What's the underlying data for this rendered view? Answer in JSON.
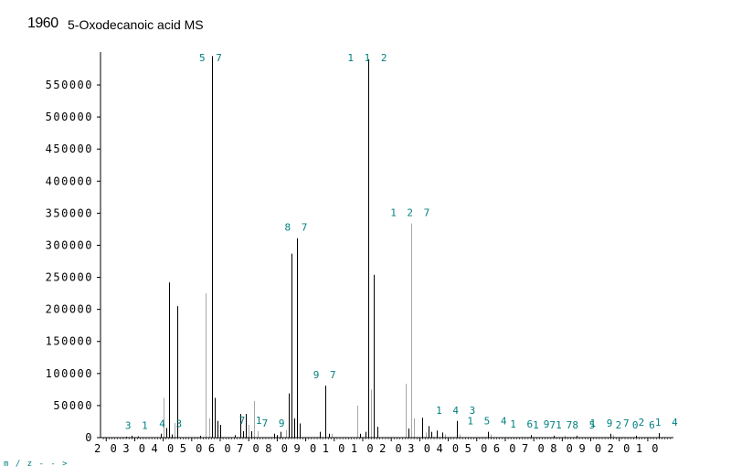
{
  "header": {
    "number": "1960",
    "compound": "5-Oxodecanoic acid MS"
  },
  "chart_data": {
    "type": "bar",
    "title": "5-Oxodecanoic acid MS",
    "xlabel": "m / z - - >",
    "ylabel": "",
    "xlim": [
      18,
      219
    ],
    "ylim": [
      0,
      600000
    ],
    "y_ticks": [
      0,
      50000,
      100000,
      150000,
      200000,
      250000,
      300000,
      350000,
      400000,
      450000,
      500000,
      550000
    ],
    "y_tick_labels": [
      "0",
      "50000",
      "100000",
      "150000",
      "200000",
      "250000",
      "300000",
      "350000",
      "400000",
      "450000",
      "500000",
      "550000"
    ],
    "x_ticks": [
      20,
      30,
      40,
      50,
      60,
      70,
      80,
      90,
      100,
      110,
      120,
      130,
      140,
      150,
      160,
      170,
      180,
      190,
      200,
      210
    ],
    "x_tick_labels": [
      "2 0",
      "3 0",
      "4 0",
      "5 0",
      "6 0",
      "7 0",
      "8 0",
      "9 0",
      "1 0",
      "1 0",
      "2 0",
      "3 0",
      "4 0",
      "5 0",
      "6 0",
      "7 0",
      "8 0",
      "9 0",
      "2 0",
      "1 0"
    ],
    "peak_labels": [
      {
        "mz": 31,
        "text": "3 1"
      },
      {
        "mz": 43,
        "text": "4 3"
      },
      {
        "mz": 57,
        "text": "5 7"
      },
      {
        "mz": 71,
        "text": "7 1"
      },
      {
        "mz": 79,
        "text": "7 9"
      },
      {
        "mz": 87,
        "text": "8 7"
      },
      {
        "mz": 97,
        "text": "9 7"
      },
      {
        "mz": 112,
        "text": "1 1 2"
      },
      {
        "mz": 127,
        "text": "1 2 7"
      },
      {
        "mz": 143,
        "text": "1 4 3"
      },
      {
        "mz": 154,
        "text": "1 5 4"
      },
      {
        "mz": 169,
        "text": "1 6 9"
      },
      {
        "mz": 177,
        "text": "1 7 7"
      },
      {
        "mz": 185,
        "text": "1 8 5"
      },
      {
        "mz": 197,
        "text": "1 9 7"
      },
      {
        "mz": 206,
        "text": "2 0 6"
      },
      {
        "mz": 214,
        "text": "2 1 4"
      }
    ],
    "series": [
      {
        "values": [
          {
            "mz": 27,
            "intensity": 1500
          },
          {
            "mz": 29,
            "intensity": 3000
          },
          {
            "mz": 31,
            "intensity": 2000
          },
          {
            "mz": 39,
            "intensity": 6000
          },
          {
            "mz": 41,
            "intensity": 15000
          },
          {
            "mz": 42,
            "intensity": 242000
          },
          {
            "mz": 43,
            "intensity": 5000
          },
          {
            "mz": 45,
            "intensity": 205000
          },
          {
            "mz": 53,
            "intensity": 3000
          },
          {
            "mz": 55,
            "intensity": 15000
          },
          {
            "mz": 57,
            "intensity": 595000
          },
          {
            "mz": 58,
            "intensity": 62000
          },
          {
            "mz": 59,
            "intensity": 26000
          },
          {
            "mz": 60,
            "intensity": 20000
          },
          {
            "mz": 65,
            "intensity": 4000
          },
          {
            "mz": 67,
            "intensity": 37000
          },
          {
            "mz": 68,
            "intensity": 10000
          },
          {
            "mz": 69,
            "intensity": 37000
          },
          {
            "mz": 71,
            "intensity": 10000
          },
          {
            "mz": 79,
            "intensity": 6000
          },
          {
            "mz": 80,
            "intensity": 4000
          },
          {
            "mz": 81,
            "intensity": 9000
          },
          {
            "mz": 84,
            "intensity": 69000
          },
          {
            "mz": 85,
            "intensity": 287000
          },
          {
            "mz": 86,
            "intensity": 30000
          },
          {
            "mz": 87,
            "intensity": 311000
          },
          {
            "mz": 88,
            "intensity": 22000
          },
          {
            "mz": 95,
            "intensity": 9000
          },
          {
            "mz": 97,
            "intensity": 81000
          },
          {
            "mz": 98,
            "intensity": 6000
          },
          {
            "mz": 109,
            "intensity": 6000
          },
          {
            "mz": 111,
            "intensity": 9000
          },
          {
            "mz": 112,
            "intensity": 590000
          },
          {
            "mz": 114,
            "intensity": 254000
          },
          {
            "mz": 115,
            "intensity": 17000
          },
          {
            "mz": 126,
            "intensity": 14000
          },
          {
            "mz": 131,
            "intensity": 31000
          },
          {
            "mz": 133,
            "intensity": 18000
          },
          {
            "mz": 134,
            "intensity": 9000
          },
          {
            "mz": 136,
            "intensity": 11000
          },
          {
            "mz": 138,
            "intensity": 8000
          },
          {
            "mz": 143,
            "intensity": 26000
          },
          {
            "mz": 154,
            "intensity": 9000
          },
          {
            "mz": 169,
            "intensity": 4000
          },
          {
            "mz": 177,
            "intensity": 3000
          },
          {
            "mz": 185,
            "intensity": 3000
          },
          {
            "mz": 197,
            "intensity": 6000
          },
          {
            "mz": 206,
            "intensity": 3000
          },
          {
            "mz": 214,
            "intensity": 7000
          }
        ]
      },
      {
        "values": [
          {
            "mz": 40,
            "intensity": 62000
          },
          {
            "mz": 44,
            "intensity": 23000
          },
          {
            "mz": 55,
            "intensity": 225000
          },
          {
            "mz": 56,
            "intensity": 30000
          },
          {
            "mz": 70,
            "intensity": 20000
          },
          {
            "mz": 72,
            "intensity": 57000
          },
          {
            "mz": 73,
            "intensity": 10000
          },
          {
            "mz": 83,
            "intensity": 12000
          },
          {
            "mz": 99,
            "intensity": 6000
          },
          {
            "mz": 108,
            "intensity": 50000
          },
          {
            "mz": 113,
            "intensity": 75000
          },
          {
            "mz": 125,
            "intensity": 84000
          },
          {
            "mz": 127,
            "intensity": 334000
          },
          {
            "mz": 128,
            "intensity": 30000
          },
          {
            "mz": 132,
            "intensity": 8000
          },
          {
            "mz": 139,
            "intensity": 5000
          },
          {
            "mz": 144,
            "intensity": 5000
          },
          {
            "mz": 155,
            "intensity": 5000
          },
          {
            "mz": 181,
            "intensity": 3000
          },
          {
            "mz": 198,
            "intensity": 4000
          }
        ]
      }
    ],
    "colors": {
      "peak_major": "#000000",
      "peak_minor": "#a8a8a8",
      "label": "#008080",
      "axis": "#000000"
    }
  }
}
